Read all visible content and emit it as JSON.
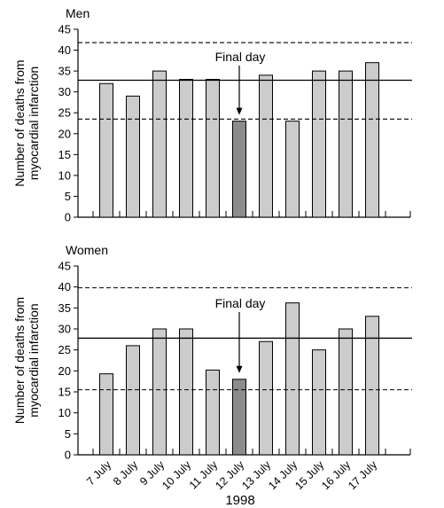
{
  "chart_data": {
    "type": "bar",
    "categories": [
      "7 July",
      "8 July",
      "9 July",
      "10 July",
      "11 July",
      "12 July",
      "13 July",
      "14 July",
      "15 July",
      "16 July",
      "17 July"
    ],
    "xlabel": "1998",
    "highlight_category": "12 July",
    "colors": {
      "bar": "#cccccc",
      "highlight": "#8c8c8c",
      "stroke": "#000000"
    },
    "panels": [
      {
        "title": "Men",
        "ylabel_lines": [
          "Number of deaths from",
          "myocardial infarction"
        ],
        "values": [
          32,
          29,
          35,
          33,
          33,
          23,
          34,
          23,
          35,
          35,
          37
        ],
        "ylim": [
          0,
          45
        ],
        "yticks": [
          0,
          5,
          10,
          15,
          20,
          25,
          30,
          35,
          40,
          45
        ],
        "mean_line": 32.8,
        "dashed_lines": [
          23.5,
          41.8
        ],
        "annotation": {
          "text": "Final day",
          "category": "12 July"
        }
      },
      {
        "title": "Women",
        "ylabel_lines": [
          "Number of deaths from",
          "myocardial infarction"
        ],
        "values": [
          19.3,
          26,
          30,
          30,
          20.2,
          18,
          27,
          36.2,
          25,
          30,
          33
        ],
        "ylim": [
          0,
          45
        ],
        "yticks": [
          0,
          5,
          10,
          15,
          20,
          25,
          30,
          35,
          40,
          45
        ],
        "mean_line": 27.8,
        "dashed_lines": [
          15.5,
          39.8
        ],
        "annotation": {
          "text": "Final day",
          "category": "12 July"
        }
      }
    ]
  }
}
